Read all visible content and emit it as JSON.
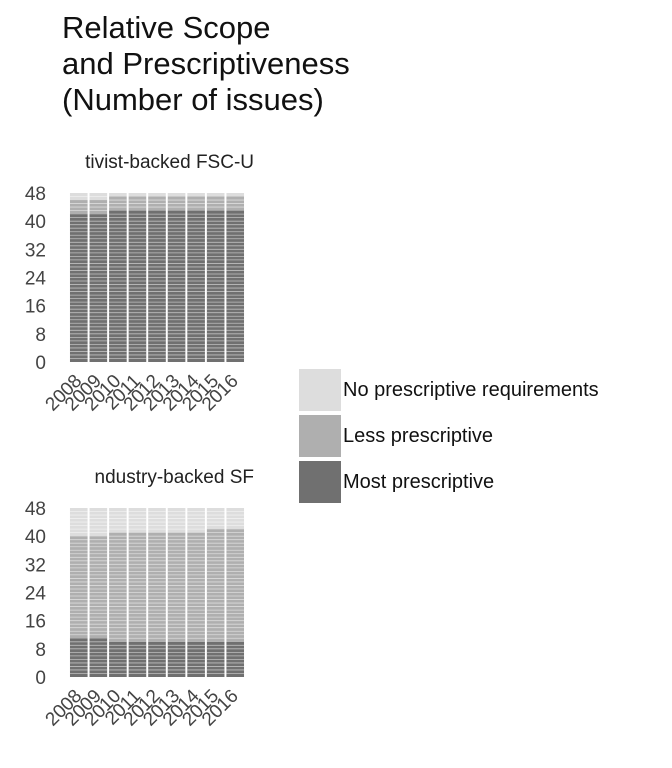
{
  "title_lines": [
    "Relative Scope",
    "and Prescriptiveness",
    "(Number of issues)"
  ],
  "legend": [
    {
      "label": "No prescriptive requirements",
      "color": "#dddddd"
    },
    {
      "label": "Less prescriptive",
      "color": "#afafaf"
    },
    {
      "label": "Most prescriptive",
      "color": "#707070"
    }
  ],
  "chart_data": [
    {
      "type": "bar",
      "stacked": true,
      "title": "Activist-backed FSC-US",
      "title_visible": "tivist-backed FSC-U",
      "categories": [
        "2008",
        "2009",
        "2010",
        "2011",
        "2012",
        "2013",
        "2014",
        "2015",
        "2016"
      ],
      "series": [
        {
          "name": "Most prescriptive",
          "values": [
            42,
            42,
            43,
            43,
            43,
            43,
            43,
            43,
            43
          ]
        },
        {
          "name": "Less prescriptive",
          "values": [
            4,
            4,
            4,
            4,
            4,
            4,
            4,
            4,
            4
          ]
        },
        {
          "name": "No prescriptive requirements",
          "values": [
            2,
            2,
            1,
            1,
            1,
            1,
            1,
            1,
            1
          ]
        }
      ],
      "ylim": [
        0,
        48
      ],
      "yticks": [
        0,
        8,
        16,
        24,
        32,
        40,
        48
      ]
    },
    {
      "type": "bar",
      "stacked": true,
      "title": "Industry-backed SFI",
      "title_visible": "ndustry-backed SF",
      "categories": [
        "2008",
        "2009",
        "2010",
        "2011",
        "2012",
        "2013",
        "2014",
        "2015",
        "2016"
      ],
      "series": [
        {
          "name": "Most prescriptive",
          "values": [
            11,
            11,
            10,
            10,
            10,
            10,
            10,
            10,
            10
          ]
        },
        {
          "name": "Less prescriptive",
          "values": [
            29,
            29,
            31,
            31,
            31,
            31,
            31,
            32,
            32
          ]
        },
        {
          "name": "No prescriptive requirements",
          "values": [
            8,
            8,
            7,
            7,
            7,
            7,
            7,
            6,
            6
          ]
        }
      ],
      "ylim": [
        0,
        48
      ],
      "yticks": [
        0,
        8,
        16,
        24,
        32,
        40,
        48
      ]
    }
  ]
}
